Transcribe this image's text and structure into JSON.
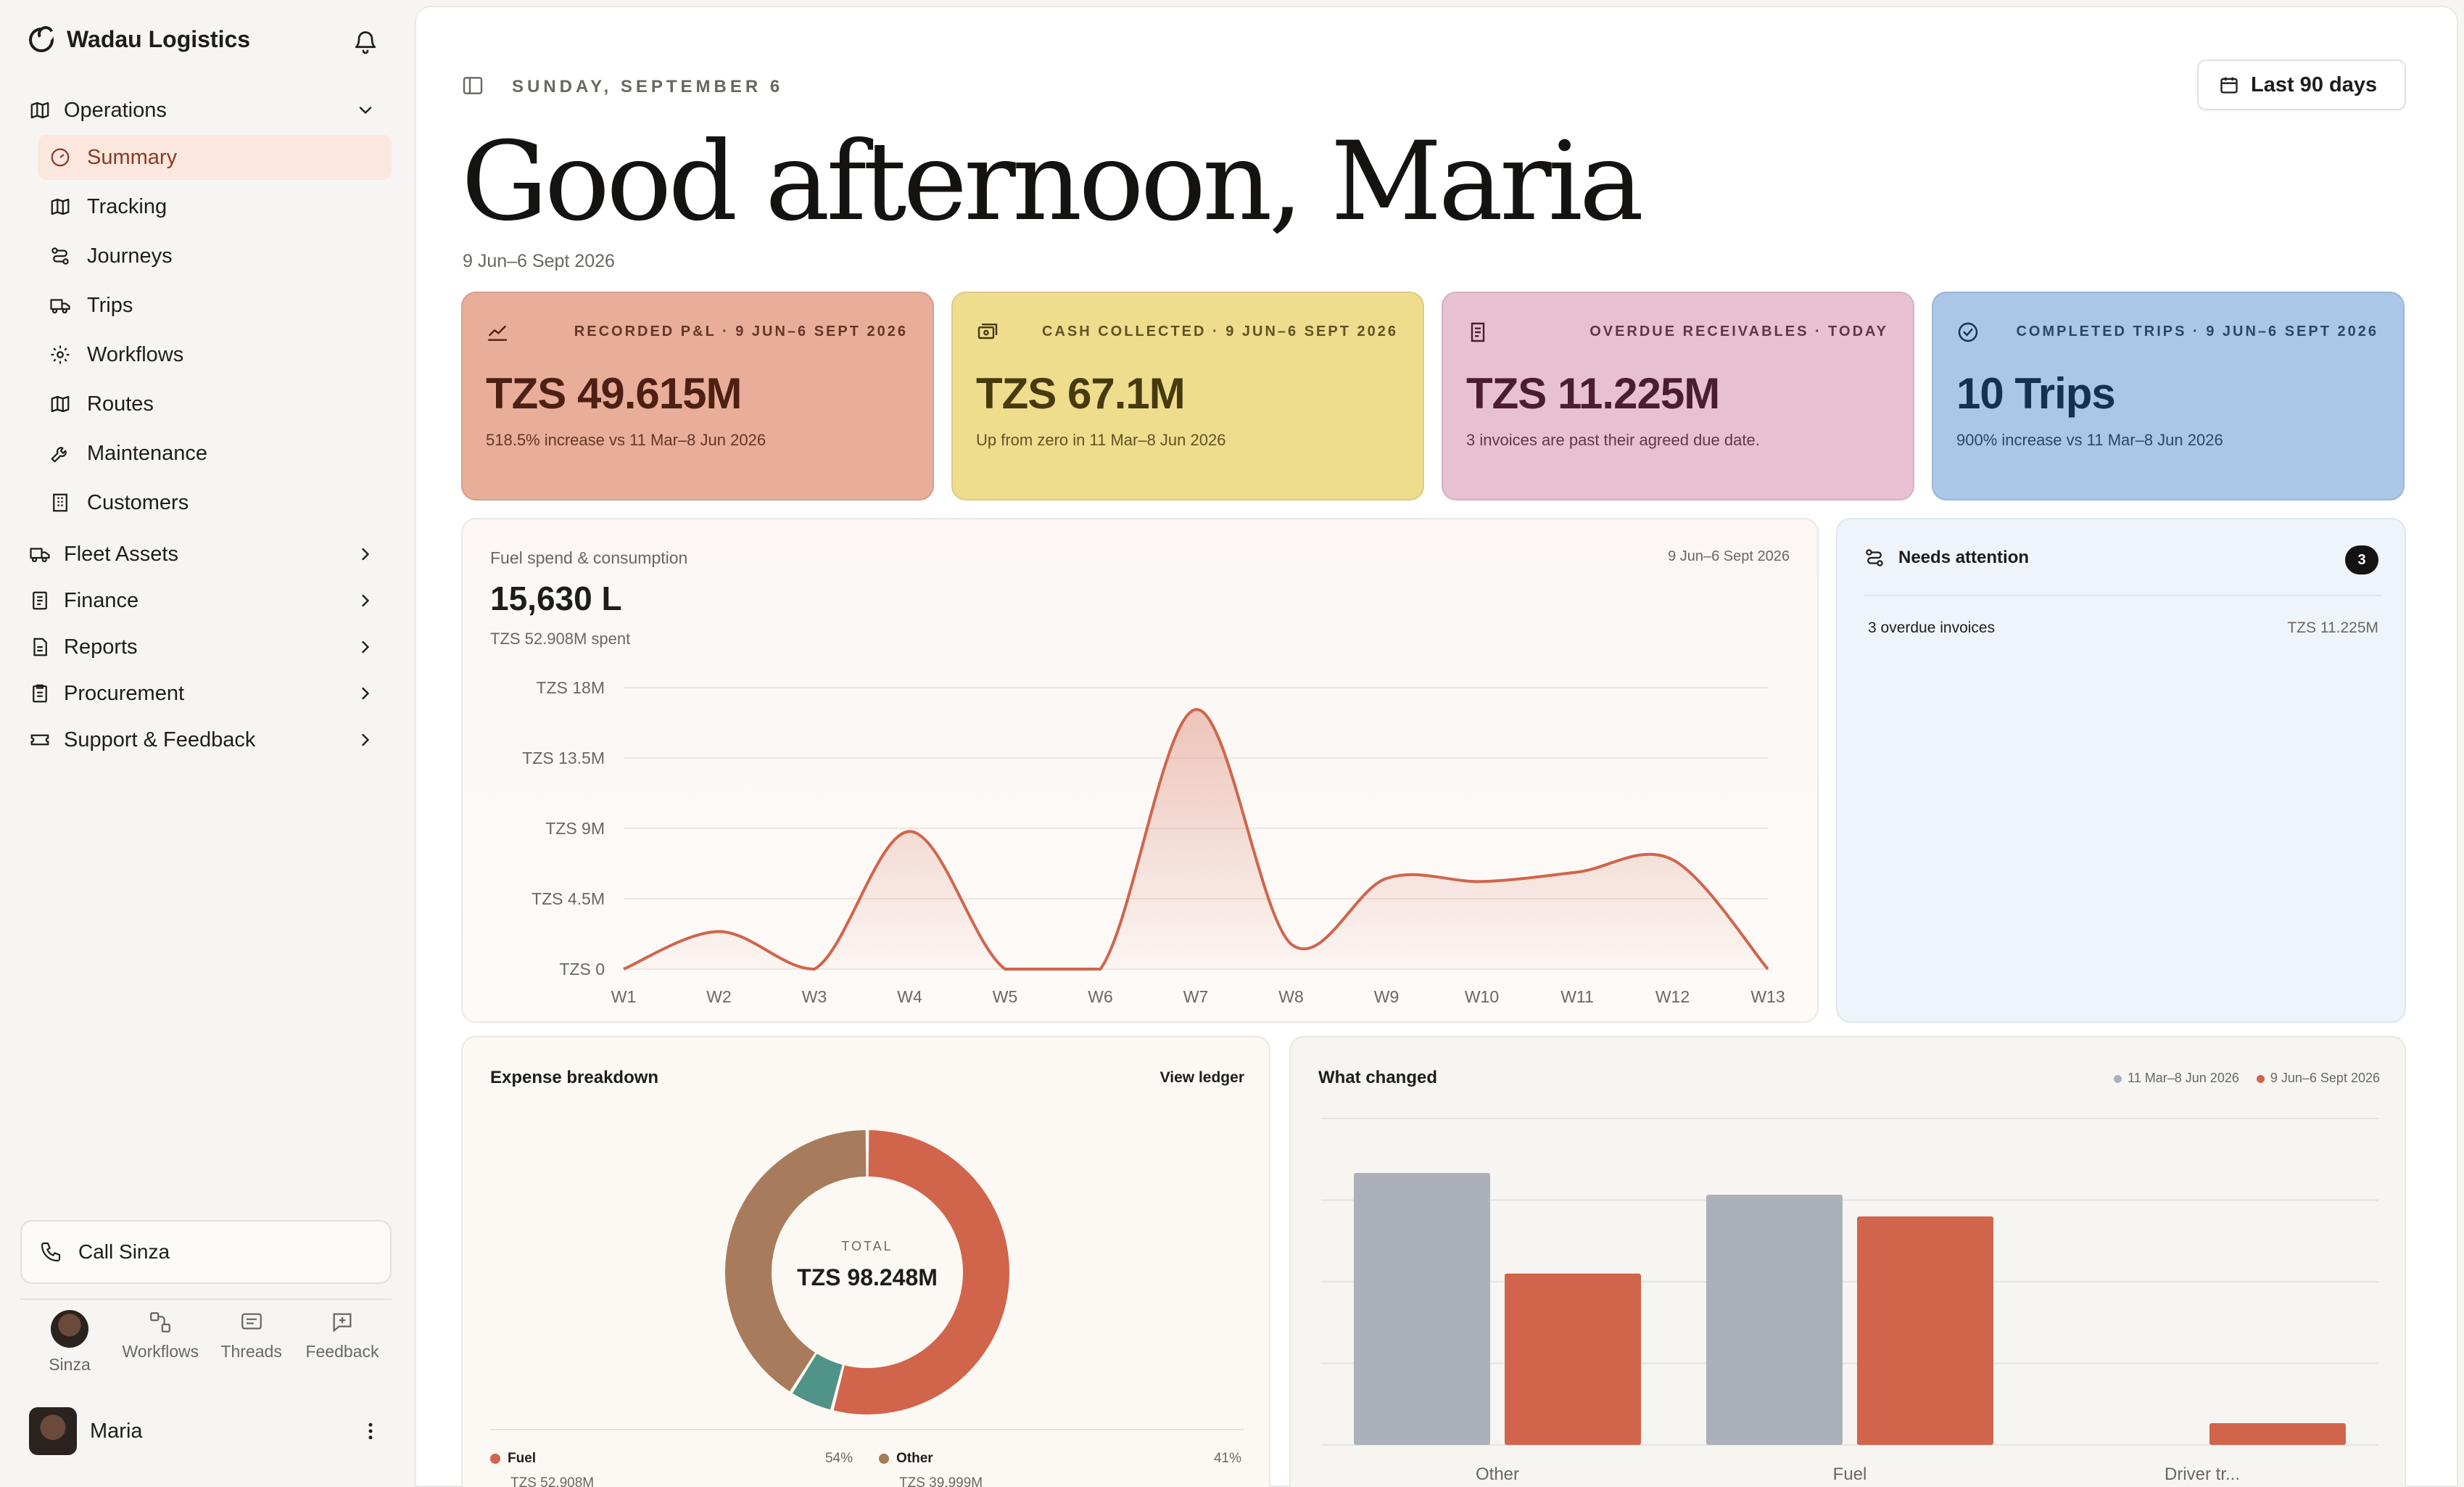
{
  "sidebar": {
    "brand": "Wadau Logistics",
    "groups": [
      {
        "label": "Operations",
        "icon": "map-icon",
        "expanded": true
      },
      {
        "label": "Fleet Assets",
        "icon": "truck-icon"
      },
      {
        "label": "Finance",
        "icon": "ledger-icon"
      },
      {
        "label": "Reports",
        "icon": "report-icon"
      },
      {
        "label": "Procurement",
        "icon": "clipboard-icon"
      },
      {
        "label": "Support & Feedback",
        "icon": "ticket-icon"
      }
    ],
    "operations_items": [
      {
        "label": "Summary",
        "icon": "gauge-icon",
        "active": true
      },
      {
        "label": "Tracking",
        "icon": "map-icon"
      },
      {
        "label": "Journeys",
        "icon": "route-icon"
      },
      {
        "label": "Trips",
        "icon": "truck-icon"
      },
      {
        "label": "Workflows",
        "icon": "gear-icon"
      },
      {
        "label": "Routes",
        "icon": "map-icon"
      },
      {
        "label": "Maintenance",
        "icon": "wrench-icon"
      },
      {
        "label": "Customers",
        "icon": "building-icon"
      }
    ],
    "call_label": "Call Sinza",
    "dock": [
      {
        "label": "Sinza",
        "icon": "avatar"
      },
      {
        "label": "Workflows",
        "icon": "workflow-icon"
      },
      {
        "label": "Threads",
        "icon": "threads-icon"
      },
      {
        "label": "Feedback",
        "icon": "feedback-icon"
      }
    ],
    "user_name": "Maria"
  },
  "header": {
    "date": "SUNDAY, SEPTEMBER 6",
    "range_button": "Last 90 days",
    "greeting": "Good afternoon, Maria",
    "subrange": "9 Jun–6 Sept 2026"
  },
  "kpis": [
    {
      "label": "RECORDED P&L · 9 JUN–6 SEPT 2026",
      "value": "TZS 49.615M",
      "note": "518.5% increase vs 11 Mar–8 Jun 2026",
      "icon": "trend-icon"
    },
    {
      "label": "CASH COLLECTED · 9 JUN–6 SEPT 2026",
      "value": "TZS 67.1M",
      "note": "Up from zero in 11 Mar–8 Jun 2026",
      "icon": "cash-icon"
    },
    {
      "label": "OVERDUE RECEIVABLES · TODAY",
      "value": "TZS 11.225M",
      "note": "3 invoices are past their agreed due date.",
      "icon": "receipt-icon"
    },
    {
      "label": "COMPLETED TRIPS · 9 JUN–6 SEPT 2026",
      "value": "10 Trips",
      "note": "900% increase vs 11 Mar–8 Jun 2026",
      "icon": "check-circle-icon"
    }
  ],
  "fuel": {
    "title": "Fuel spend & consumption",
    "date": "9 Jun–6 Sept 2026",
    "value": "15,630 L",
    "spent": "TZS 52.908M spent"
  },
  "attention": {
    "title": "Needs attention",
    "count": "3",
    "rows": [
      {
        "label": "3 overdue invoices",
        "amount": "TZS 11.225M"
      }
    ]
  },
  "expense": {
    "title": "Expense breakdown",
    "link": "View ledger",
    "center_label": "TOTAL",
    "center_value": "TZS 98.248M",
    "legend": [
      {
        "name": "Fuel",
        "pct": "54%",
        "amount": "TZS 52.908M",
        "color": "#d0654b"
      },
      {
        "name": "Other",
        "pct": "41%",
        "amount": "TZS 39.999M",
        "color": "#a87b5c"
      }
    ]
  },
  "changes": {
    "title": "What changed",
    "legend_prev": "11 Mar–8 Jun 2026",
    "legend_curr": "9 Jun–6 Sept 2026"
  },
  "colors": {
    "accent": "#d0654b",
    "prev": "#abb0b9",
    "teal": "#4f9487",
    "other": "#a87b5c"
  },
  "chart_data": [
    {
      "type": "area",
      "title": "Fuel spend & consumption",
      "x": [
        "W1",
        "W2",
        "W3",
        "W4",
        "W5",
        "W6",
        "W7",
        "W8",
        "W9",
        "W10",
        "W11",
        "W12",
        "W13"
      ],
      "y_ticks": [
        "TZS 0",
        "TZS 4.5M",
        "TZS 9M",
        "TZS 13.5M",
        "TZS 18M"
      ],
      "ylim": [
        0,
        18
      ],
      "series": [
        {
          "values": [
            0,
            2.4,
            0,
            8.8,
            0,
            0,
            16.6,
            1.6,
            5.8,
            5.6,
            6.2,
            7.0,
            0
          ]
        }
      ],
      "grid": true
    },
    {
      "type": "pie",
      "title": "Expense breakdown",
      "slices": [
        {
          "label": "Fuel",
          "value": 54,
          "color": "#d0654b"
        },
        {
          "label": "",
          "value": 5,
          "color": "#4f9487"
        },
        {
          "label": "Other",
          "value": 41,
          "color": "#a87b5c"
        }
      ]
    },
    {
      "type": "bar",
      "title": "What changed",
      "categories": [
        "Other",
        "Fuel",
        "Driver tr..."
      ],
      "series": [
        {
          "name": "11 Mar–8 Jun 2026",
          "values": [
            100,
            92,
            0
          ],
          "color": "#abb0b9"
        },
        {
          "name": "9 Jun–6 Sept 2026",
          "values": [
            63,
            84,
            8
          ],
          "color": "#d0654b"
        }
      ],
      "ylim": [
        0,
        120
      ],
      "grid": true
    }
  ]
}
